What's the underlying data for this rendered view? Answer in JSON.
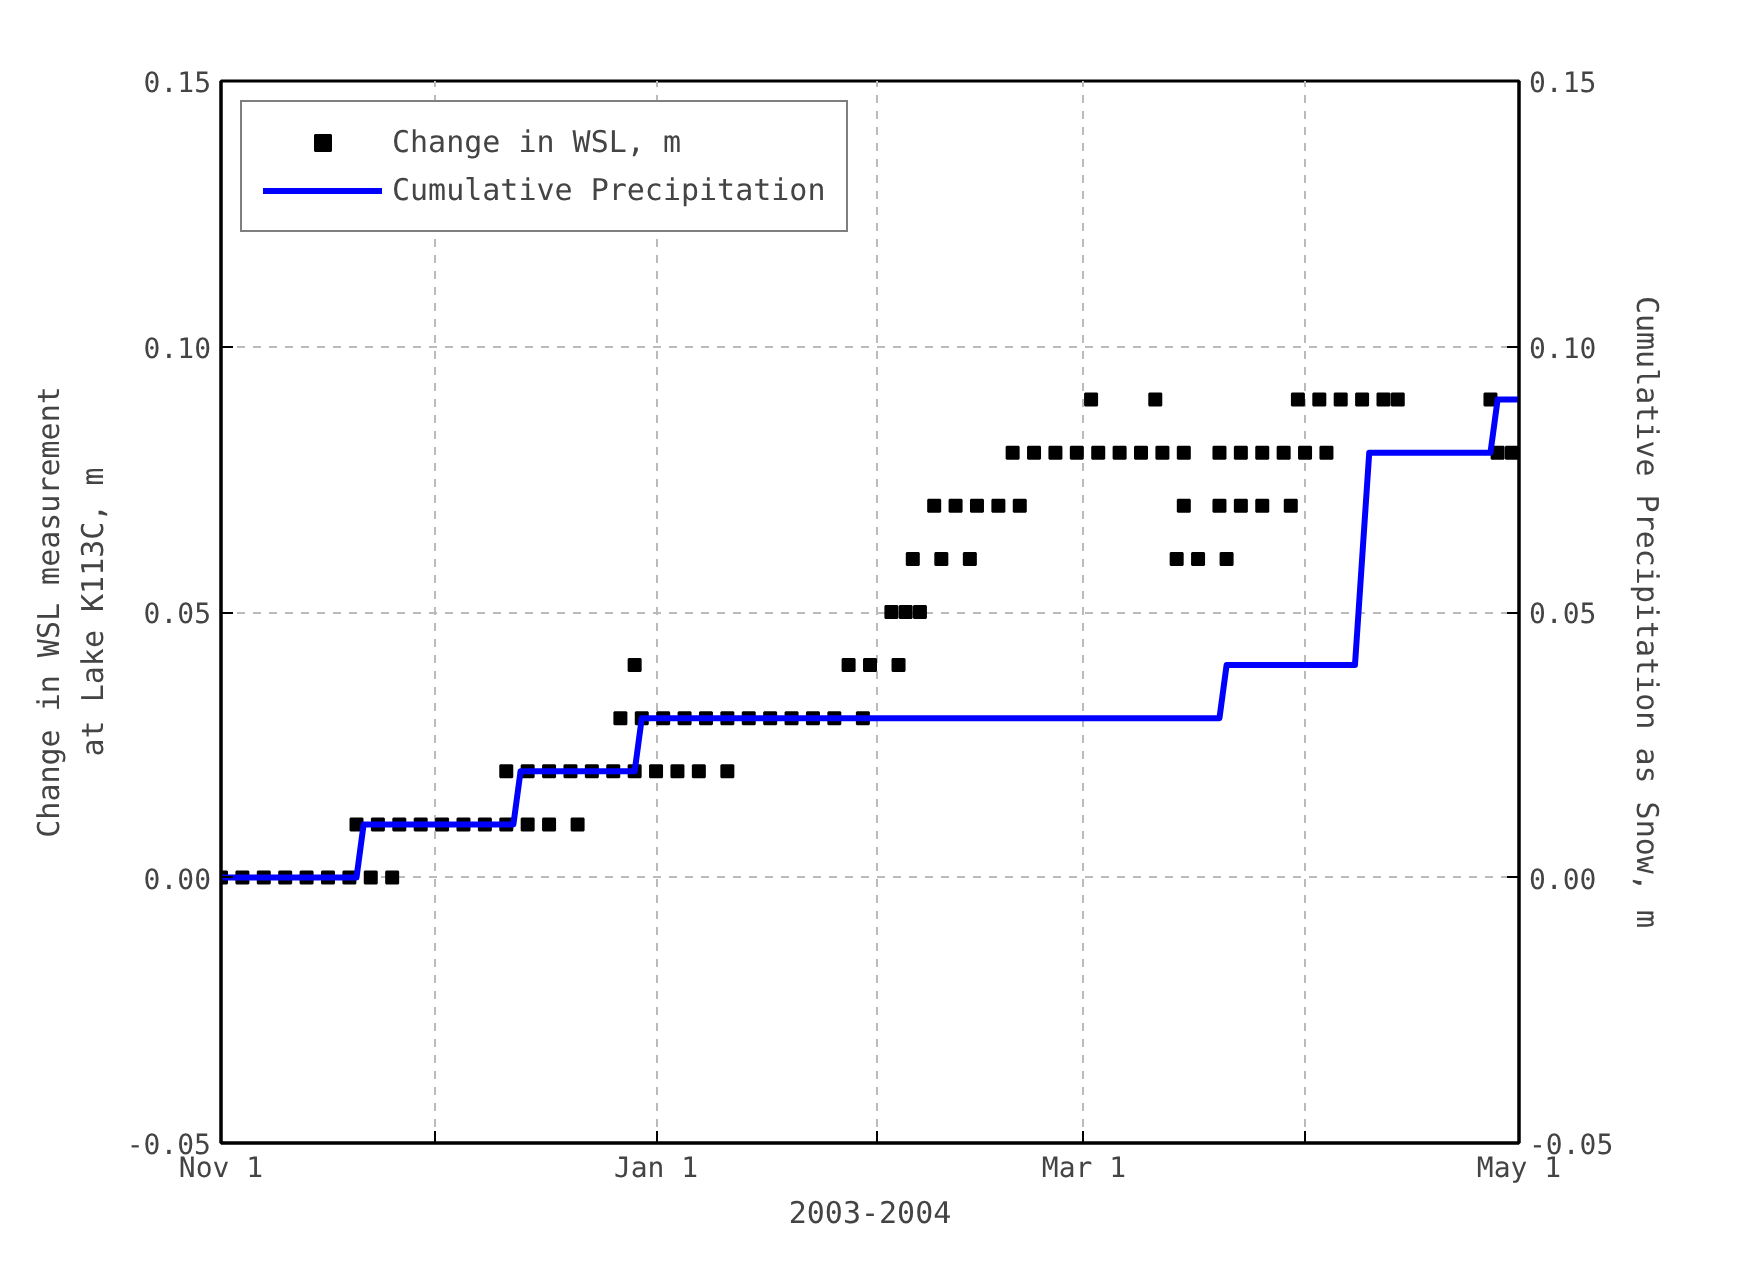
{
  "chart_data": {
    "type": "scatter",
    "xlabel": "2003-2004",
    "ylabel": "Change in WSL measurement\nat Lake K113C, m",
    "y2label": "Cumulative Precipitation as Snow, m",
    "xlim": [
      "2003-11-01",
      "2004-05-01"
    ],
    "xticks": [
      {
        "value": "2003-11-01",
        "label": "Nov 1"
      },
      {
        "value": "2003-12-01",
        "label": null
      },
      {
        "value": "2004-01-01",
        "label": "Jan 1"
      },
      {
        "value": "2004-02-01",
        "label": null
      },
      {
        "value": "2004-03-01",
        "label": "Mar 1"
      },
      {
        "value": "2004-04-01",
        "label": null
      },
      {
        "value": "2004-05-01",
        "label": "May 1"
      }
    ],
    "ylim": [
      -0.05,
      0.15
    ],
    "yticks": [
      -0.05,
      {
        "value": 0,
        "label": "0.00"
      },
      0.05,
      {
        "value": 0.1,
        "label": "0.10"
      },
      0.15
    ],
    "y2lim": [
      -0.05,
      0.15
    ],
    "y2ticks": [
      -0.05,
      {
        "value": 0,
        "label": "0.00"
      },
      0.05,
      {
        "value": 0.1,
        "label": "0.10"
      },
      0.15
    ],
    "grid": true,
    "legend": "top left",
    "series": [
      {
        "name": "Change in WSL, m",
        "marker": "square",
        "color": "#000000",
        "x": [
          "2003-11-01",
          "2003-11-04",
          "2003-11-07",
          "2003-11-10",
          "2003-11-13",
          "2003-11-16",
          "2003-11-19",
          "2003-11-22",
          "2003-11-25",
          "2003-11-20",
          "2003-11-23",
          "2003-11-26",
          "2003-11-29",
          "2003-12-02",
          "2003-12-05",
          "2003-12-08",
          "2003-12-11",
          "2003-12-14",
          "2003-12-17",
          "2003-12-21",
          "2003-12-11",
          "2003-12-14",
          "2003-12-17",
          "2003-12-20",
          "2003-12-23",
          "2003-12-26",
          "2003-12-29",
          "2004-01-01",
          "2004-01-04",
          "2004-01-07",
          "2004-01-11",
          "2003-12-27",
          "2003-12-30",
          "2004-01-02",
          "2004-01-05",
          "2004-01-08",
          "2004-01-11",
          "2004-01-14",
          "2004-01-17",
          "2004-01-20",
          "2004-01-23",
          "2004-01-26",
          "2004-01-30",
          "2003-12-29",
          "2004-01-28",
          "2004-01-31",
          "2004-02-04",
          "2004-02-03",
          "2004-02-05",
          "2004-02-07",
          "2004-02-06",
          "2004-02-10",
          "2004-02-14",
          "2004-03-14",
          "2004-03-17",
          "2004-03-21",
          "2004-02-09",
          "2004-02-12",
          "2004-02-15",
          "2004-02-18",
          "2004-02-21",
          "2004-03-15",
          "2004-03-20",
          "2004-03-23",
          "2004-03-26",
          "2004-03-30",
          "2004-02-20",
          "2004-02-23",
          "2004-02-26",
          "2004-02-29",
          "2004-03-03",
          "2004-03-06",
          "2004-03-09",
          "2004-03-12",
          "2004-03-15",
          "2004-03-20",
          "2004-03-23",
          "2004-03-26",
          "2004-03-29",
          "2004-04-01",
          "2004-04-04",
          "2004-04-28",
          "2004-04-30",
          "2004-03-02",
          "2004-03-11",
          "2004-03-31",
          "2004-04-03",
          "2004-04-06",
          "2004-04-09",
          "2004-04-12",
          "2004-04-14",
          "2004-04-27"
        ],
        "values": [
          0,
          0,
          0,
          0,
          0,
          0,
          0,
          0,
          0,
          0.01,
          0.01,
          0.01,
          0.01,
          0.01,
          0.01,
          0.01,
          0.01,
          0.01,
          0.01,
          0.01,
          0.02,
          0.02,
          0.02,
          0.02,
          0.02,
          0.02,
          0.02,
          0.02,
          0.02,
          0.02,
          0.02,
          0.03,
          0.03,
          0.03,
          0.03,
          0.03,
          0.03,
          0.03,
          0.03,
          0.03,
          0.03,
          0.03,
          0.03,
          0.04,
          0.04,
          0.04,
          0.04,
          0.05,
          0.05,
          0.05,
          0.06,
          0.06,
          0.06,
          0.06,
          0.06,
          0.06,
          0.07,
          0.07,
          0.07,
          0.07,
          0.07,
          0.07,
          0.07,
          0.07,
          0.07,
          0.07,
          0.08,
          0.08,
          0.08,
          0.08,
          0.08,
          0.08,
          0.08,
          0.08,
          0.08,
          0.08,
          0.08,
          0.08,
          0.08,
          0.08,
          0.08,
          0.08,
          0.08,
          0.09,
          0.09,
          0.09,
          0.09,
          0.09,
          0.09,
          0.09,
          0.09,
          0.09
        ]
      },
      {
        "name": "Cumulative Precipitation",
        "type": "line",
        "axis": "y2",
        "color": "#0000ff",
        "line_style": "solid",
        "x": [
          "2003-11-01",
          "2003-11-20",
          "2003-11-21",
          "2003-12-12",
          "2003-12-13",
          "2003-12-29",
          "2003-12-30",
          "2004-03-20",
          "2004-03-21",
          "2004-04-08",
          "2004-04-10",
          "2004-04-27",
          "2004-04-28",
          "2004-05-01"
        ],
        "values": [
          0,
          0,
          0.01,
          0.01,
          0.02,
          0.02,
          0.03,
          0.03,
          0.04,
          0.04,
          0.08,
          0.08,
          0.09,
          0.09
        ]
      }
    ]
  }
}
